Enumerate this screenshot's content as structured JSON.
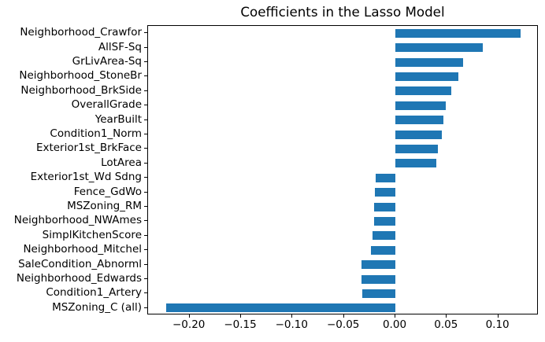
{
  "chart_data": {
    "type": "bar",
    "orientation": "horizontal",
    "title": "Coefficients in the Lasso Model",
    "xlabel": "",
    "ylabel": "",
    "categories": [
      "Neighborhood_Crawfor",
      "AllSF-Sq",
      "GrLivArea-Sq",
      "Neighborhood_StoneBr",
      "Neighborhood_BrkSide",
      "OverallGrade",
      "YearBuilt",
      "Condition1_Norm",
      "Exterior1st_BrkFace",
      "LotArea",
      "Exterior1st_Wd Sdng",
      "Fence_GdWo",
      "MSZoning_RM",
      "Neighborhood_NWAmes",
      "SimplKitchenScore",
      "Neighborhood_Mitchel",
      "SaleCondition_Abnorml",
      "Neighborhood_Edwards",
      "Condition1_Artery",
      "MSZoning_C (all)"
    ],
    "values": [
      0.122,
      0.085,
      0.066,
      0.061,
      0.054,
      0.049,
      0.047,
      0.045,
      0.041,
      0.04,
      -0.019,
      -0.02,
      -0.021,
      -0.021,
      -0.022,
      -0.024,
      -0.033,
      -0.033,
      -0.032,
      -0.223
    ],
    "xlim": [
      -0.2403,
      0.1393
    ],
    "x_ticks": [
      -0.2,
      -0.15,
      -0.1,
      -0.05,
      0.0,
      0.05,
      0.1
    ],
    "grid": false,
    "legend_position": "none",
    "bar_color": "#1f77b4",
    "background_color": "#ffffff",
    "spine_color": "#000000",
    "text_color": "#000000"
  }
}
